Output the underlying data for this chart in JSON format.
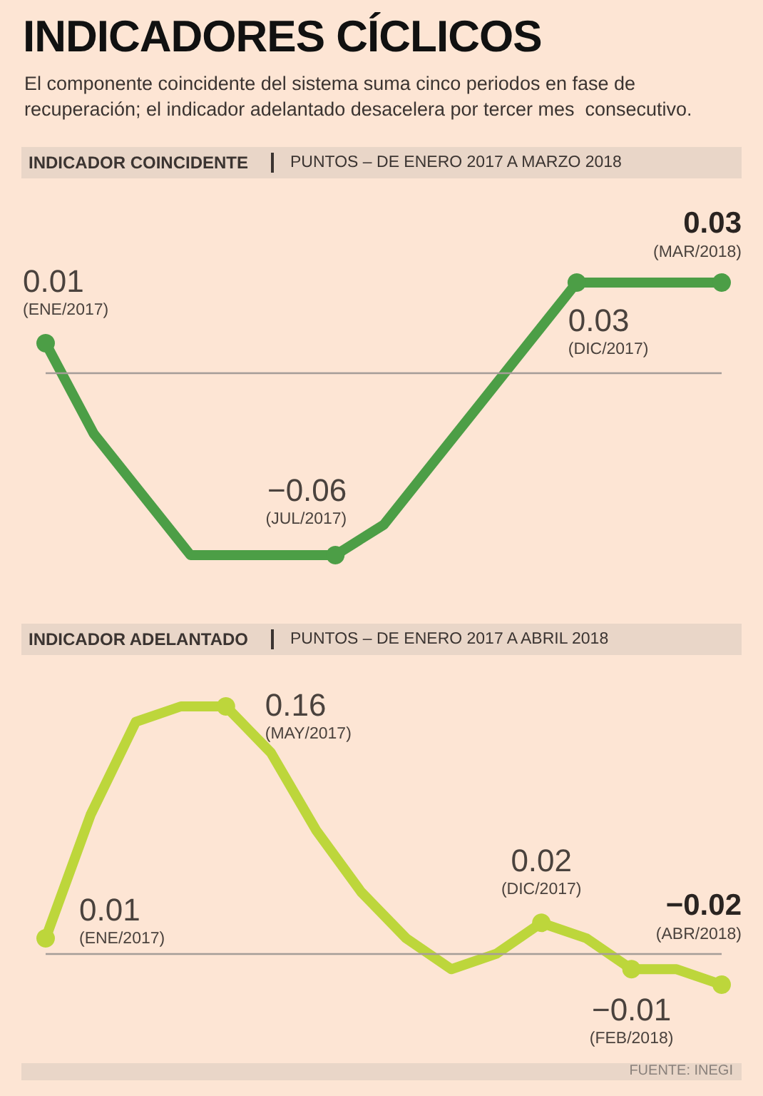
{
  "chart_data": [
    {
      "type": "other",
      "title": "INDICADORES CÍCLICOS",
      "subtitle": "El componente coincidente del sistema suma cinco periodos en fase de recuperación; el indicador adelantado desacelera por tercer mes  consecutivo."
    },
    {
      "type": "line",
      "title": "INDICADOR COINCIDENTE",
      "subtitle": "PUNTOS – DE ENERO 2017 A MARZO 2018",
      "categories": [
        null,
        null,
        null,
        null,
        null,
        null,
        null,
        null,
        null,
        null,
        null,
        null,
        null,
        null,
        null
      ],
      "values": [
        0.01,
        -0.02,
        -0.04,
        -0.06,
        -0.06,
        -0.06,
        -0.06,
        -0.05,
        -0.03,
        -0.01,
        0.01,
        0.03,
        0.03,
        0.03,
        0.03
      ],
      "value_labels": [
        "0.01\n(ENE/2017)",
        null,
        null,
        null,
        null,
        null,
        "−0.06\n(JUL/2017)",
        null,
        null,
        null,
        null,
        "0.03\n(DIC/2017)",
        null,
        null,
        "0.03\n(MAR/2018)"
      ],
      "color": "#4c9e46",
      "ref_lines": [
        {
          "axis": "y",
          "value": 0,
          "color": "#a59d98"
        }
      ]
    },
    {
      "type": "line",
      "title": "INDICADOR ADELANTADO",
      "subtitle": "PUNTOS – DE ENERO 2017 A ABRIL 2018",
      "categories": [
        null,
        null,
        null,
        null,
        null,
        null,
        null,
        null,
        null,
        null,
        null,
        null,
        null,
        null,
        null,
        null
      ],
      "values": [
        0.01,
        0.09,
        0.15,
        0.16,
        0.16,
        0.13,
        0.08,
        0.04,
        0.01,
        -0.01,
        0,
        0.02,
        0.01,
        -0.01,
        -0.01,
        -0.02
      ],
      "value_labels": [
        "0.01\n(ENE/2017)",
        null,
        null,
        null,
        "0.16\n(MAY/2017)",
        null,
        null,
        null,
        null,
        null,
        null,
        "0.02\n(DIC/2017)",
        null,
        "−0.01\n(FEB/2018)",
        null,
        "−0.02\n(ABR/2018)"
      ],
      "color": "#bdd63b",
      "ref_lines": [
        {
          "axis": "y",
          "value": 0,
          "color": "#a59d98"
        }
      ],
      "annotations": [
        "FUENTE: INEGI"
      ]
    }
  ]
}
